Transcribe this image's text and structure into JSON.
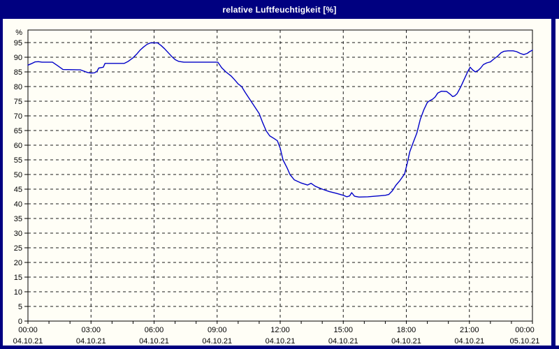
{
  "window": {
    "title": "relative Luftfeuchtigkeit [%]",
    "colors": {
      "title_bg": "#000080",
      "title_text": "#ffffff",
      "frame_border": "#000080",
      "plot_bg": "#fffef6",
      "axis": "#000000",
      "grid": "#1a1a1a",
      "label_text": "#000000"
    }
  },
  "chart_data": {
    "type": "line",
    "title": "relative Luftfeuchtigkeit [%]",
    "ylabel": "%",
    "xlabel": "",
    "grid": "dashed, horizontal every 5 units, vertical every 3 hours",
    "legend": "none",
    "line_color": "#0000c8",
    "y_axis": {
      "unit": "%",
      "min": 0,
      "max": 99,
      "tick_step": 5,
      "ticks": [
        0,
        5,
        10,
        15,
        20,
        25,
        30,
        35,
        40,
        45,
        50,
        55,
        60,
        65,
        70,
        75,
        80,
        85,
        90,
        95
      ]
    },
    "x_axis": {
      "start_label": "00:00 04.10.21",
      "end_label": "00:00 05.10.21",
      "hours_total": 24,
      "minor_tick_hours": 1,
      "major_tick_hours": 3,
      "labels": [
        {
          "hour": 0,
          "time": "00:00",
          "date": "04.10.21"
        },
        {
          "hour": 3,
          "time": "03:00",
          "date": "04.10.21"
        },
        {
          "hour": 6,
          "time": "06:00",
          "date": "04.10.21"
        },
        {
          "hour": 9,
          "time": "09:00",
          "date": "04.10.21"
        },
        {
          "hour": 12,
          "time": "12:00",
          "date": "04.10.21"
        },
        {
          "hour": 15,
          "time": "15:00",
          "date": "04.10.21"
        },
        {
          "hour": 18,
          "time": "18:00",
          "date": "04.10.21"
        },
        {
          "hour": 21,
          "time": "21:00",
          "date": "04.10.21"
        },
        {
          "hour": 24,
          "time": "00:00",
          "date": "05.10.21"
        }
      ]
    },
    "series": [
      {
        "name": "relative Luftfeuchtigkeit [%]",
        "points": [
          [
            "00:00",
            87.3
          ],
          [
            "00:10",
            87.8
          ],
          [
            "00:20",
            88.4
          ],
          [
            "00:30",
            88.5
          ],
          [
            "00:40",
            88.3
          ],
          [
            "01:10",
            88.3
          ],
          [
            "01:25",
            87.1
          ],
          [
            "01:40",
            85.8
          ],
          [
            "02:30",
            85.7
          ],
          [
            "02:50",
            84.8
          ],
          [
            "03:00",
            84.6
          ],
          [
            "03:10",
            84.7
          ],
          [
            "03:17",
            85.2
          ],
          [
            "03:22",
            86.3
          ],
          [
            "03:35",
            86.6
          ],
          [
            "03:40",
            87.9
          ],
          [
            "04:35",
            87.9
          ],
          [
            "04:45",
            88.5
          ],
          [
            "05:00",
            89.8
          ],
          [
            "05:10",
            91.0
          ],
          [
            "05:20",
            92.4
          ],
          [
            "05:30",
            93.5
          ],
          [
            "05:40",
            94.4
          ],
          [
            "05:50",
            94.9
          ],
          [
            "06:10",
            94.9
          ],
          [
            "06:20",
            94.0
          ],
          [
            "06:30",
            92.9
          ],
          [
            "06:40",
            91.6
          ],
          [
            "06:50",
            90.3
          ],
          [
            "07:00",
            89.2
          ],
          [
            "07:10",
            88.6
          ],
          [
            "07:25",
            88.3
          ],
          [
            "09:02",
            88.3
          ],
          [
            "09:13",
            86.4
          ],
          [
            "09:25",
            85.0
          ],
          [
            "09:40",
            83.6
          ],
          [
            "09:50",
            82.3
          ],
          [
            "10:00",
            80.9
          ],
          [
            "10:10",
            80.0
          ],
          [
            "10:20",
            78.0
          ],
          [
            "10:40",
            74.4
          ],
          [
            "11:00",
            70.8
          ],
          [
            "11:10",
            67.7
          ],
          [
            "11:20",
            64.9
          ],
          [
            "11:30",
            63.2
          ],
          [
            "11:42",
            62.3
          ],
          [
            "11:52",
            61.5
          ],
          [
            "12:00",
            59.0
          ],
          [
            "12:08",
            55.0
          ],
          [
            "12:20",
            52.2
          ],
          [
            "12:28",
            50.0
          ],
          [
            "12:40",
            48.2
          ],
          [
            "13:00",
            47.1
          ],
          [
            "13:18",
            46.4
          ],
          [
            "13:28",
            47.0
          ],
          [
            "13:40",
            46.0
          ],
          [
            "14:00",
            45.0
          ],
          [
            "14:20",
            44.2
          ],
          [
            "14:40",
            43.6
          ],
          [
            "15:00",
            42.9
          ],
          [
            "15:10",
            42.4
          ],
          [
            "15:18",
            42.7
          ],
          [
            "15:24",
            43.8
          ],
          [
            "15:32",
            42.6
          ],
          [
            "15:45",
            42.3
          ],
          [
            "16:10",
            42.4
          ],
          [
            "16:40",
            42.7
          ],
          [
            "17:00",
            42.9
          ],
          [
            "17:10",
            43.2
          ],
          [
            "17:20",
            44.4
          ],
          [
            "17:30",
            46.3
          ],
          [
            "17:42",
            48.0
          ],
          [
            "17:55",
            50.2
          ],
          [
            "18:02",
            53.5
          ],
          [
            "18:10",
            57.8
          ],
          [
            "18:20",
            61.0
          ],
          [
            "18:30",
            64.1
          ],
          [
            "18:40",
            68.9
          ],
          [
            "18:50",
            72.1
          ],
          [
            "19:00",
            74.6
          ],
          [
            "19:07",
            75.2
          ],
          [
            "19:15",
            75.7
          ],
          [
            "19:22",
            76.4
          ],
          [
            "19:30",
            77.8
          ],
          [
            "19:40",
            78.4
          ],
          [
            "19:55",
            78.3
          ],
          [
            "20:05",
            77.4
          ],
          [
            "20:12",
            76.6
          ],
          [
            "20:18",
            76.8
          ],
          [
            "20:25",
            77.6
          ],
          [
            "20:35",
            79.8
          ],
          [
            "20:45",
            82.4
          ],
          [
            "20:55",
            85.0
          ],
          [
            "21:02",
            86.6
          ],
          [
            "21:10",
            85.6
          ],
          [
            "21:17",
            85.0
          ],
          [
            "21:25",
            85.5
          ],
          [
            "21:32",
            86.3
          ],
          [
            "21:40",
            87.5
          ],
          [
            "21:50",
            88.1
          ],
          [
            "22:00",
            88.4
          ],
          [
            "22:10",
            89.4
          ],
          [
            "22:20",
            90.3
          ],
          [
            "22:30",
            91.5
          ],
          [
            "22:38",
            92.0
          ],
          [
            "22:50",
            92.2
          ],
          [
            "23:05",
            92.2
          ],
          [
            "23:15",
            91.9
          ],
          [
            "23:25",
            91.3
          ],
          [
            "23:35",
            90.9
          ],
          [
            "23:45",
            91.3
          ],
          [
            "23:52",
            91.9
          ],
          [
            "24:00",
            92.4
          ]
        ]
      }
    ]
  }
}
